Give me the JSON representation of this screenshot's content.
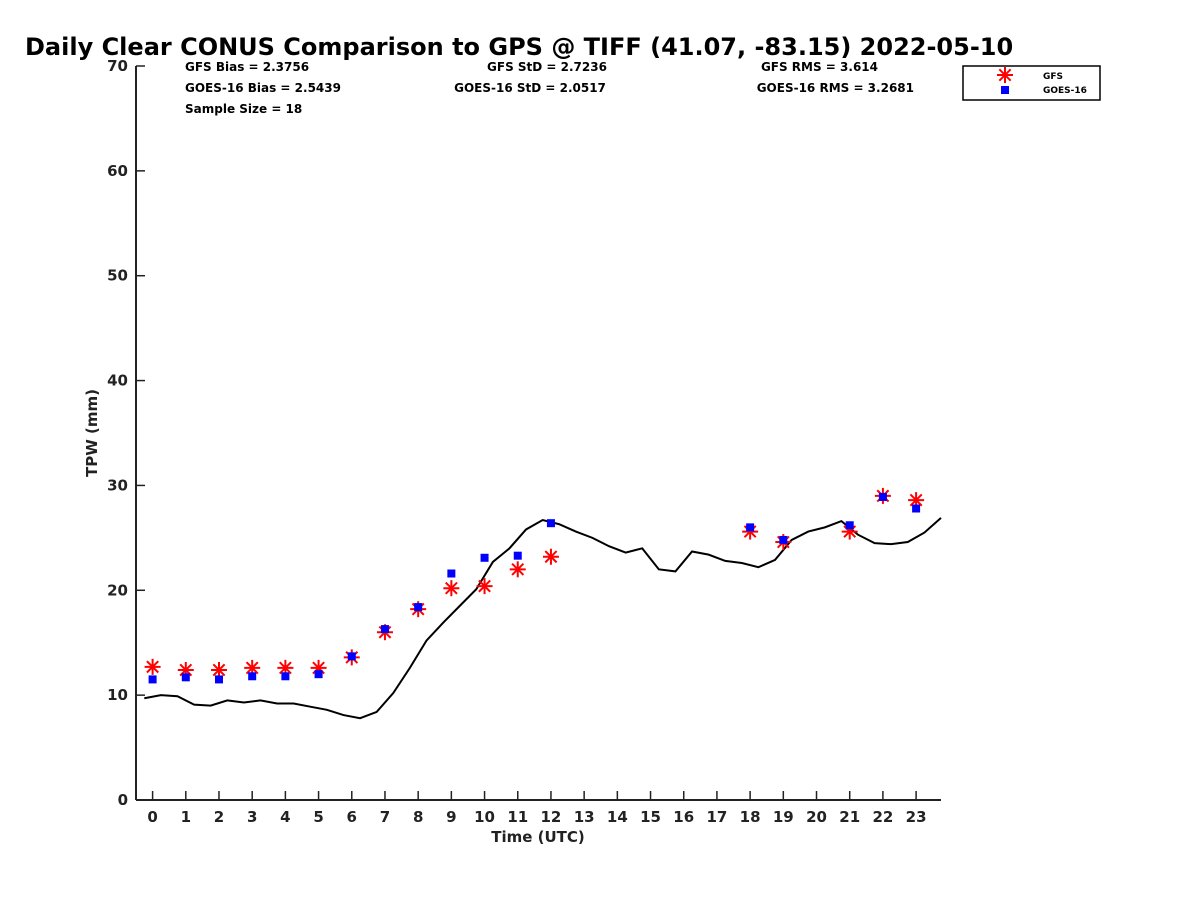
{
  "chart_data": {
    "type": "scatter",
    "title": "Daily Clear CONUS Comparison to GPS @ TIFF (41.07, -83.15) 2022-05-10",
    "xlabel": "Time (UTC)",
    "ylabel": "TPW (mm)",
    "xlim": [
      -0.5,
      23.75
    ],
    "ylim": [
      0,
      70
    ],
    "x_ticks": [
      0,
      1,
      2,
      3,
      4,
      5,
      6,
      7,
      8,
      9,
      10,
      11,
      12,
      13,
      14,
      15,
      16,
      17,
      18,
      19,
      20,
      21,
      22,
      23
    ],
    "y_ticks": [
      0,
      10,
      20,
      30,
      40,
      50,
      60,
      70
    ],
    "grid": false,
    "legend_position": "top-right",
    "stats": {
      "gfs_bias": "GFS Bias = 2.3756",
      "goes_bias": "GOES-16 Bias = 2.5439",
      "sample_size": "Sample Size = 18",
      "gfs_std": "GFS StD = 2.7236",
      "goes_std": "GOES-16 StD = 2.0517",
      "gfs_rms": "GFS RMS = 3.614",
      "goes_rms": "GOES-16 RMS = 3.2681"
    },
    "series": [
      {
        "name": "GFS",
        "marker": "asterisk",
        "color": "#ff0000",
        "x": [
          0,
          1,
          2,
          3,
          4,
          5,
          6,
          7,
          8,
          9,
          10,
          11,
          12,
          18,
          19,
          21,
          22,
          23
        ],
        "y": [
          12.7,
          12.4,
          12.4,
          12.6,
          12.6,
          12.6,
          13.6,
          16.0,
          18.2,
          20.2,
          20.4,
          22.0,
          23.2,
          25.6,
          24.6,
          25.6,
          29.0,
          28.6
        ]
      },
      {
        "name": "GOES-16",
        "marker": "square",
        "color": "#0000ff",
        "x": [
          0,
          1,
          2,
          3,
          4,
          5,
          6,
          7,
          8,
          9,
          10,
          11,
          12,
          18,
          19,
          21,
          22,
          23
        ],
        "y": [
          11.5,
          11.7,
          11.5,
          11.8,
          11.8,
          12.0,
          13.7,
          16.3,
          18.4,
          21.6,
          23.1,
          23.3,
          26.4,
          26.0,
          24.8,
          26.2,
          28.9,
          27.8
        ]
      },
      {
        "marker": "line",
        "color": "#000000",
        "x": [
          -0.25,
          0.25,
          0.75,
          1.25,
          1.75,
          2.25,
          2.75,
          3.25,
          3.75,
          4.25,
          4.75,
          5.25,
          5.75,
          6.25,
          6.75,
          7.25,
          7.75,
          8.25,
          8.75,
          9.25,
          9.75,
          10.25,
          10.75,
          11.25,
          11.75,
          12.25,
          12.75,
          13.25,
          13.75,
          14.25,
          14.75,
          15.25,
          15.75,
          16.25,
          16.75,
          17.25,
          17.75,
          18.25,
          18.75,
          19.25,
          19.75,
          20.25,
          20.75,
          21.25,
          21.75,
          22.25,
          22.75,
          23.25,
          23.75
        ],
        "y": [
          9.7,
          10.0,
          9.9,
          9.1,
          9.0,
          9.5,
          9.3,
          9.5,
          9.2,
          9.2,
          8.9,
          8.6,
          8.1,
          7.8,
          8.4,
          10.2,
          12.6,
          15.2,
          16.9,
          18.5,
          20.1,
          22.7,
          24.0,
          25.8,
          26.7,
          26.3,
          25.6,
          25.0,
          24.2,
          23.6,
          24.0,
          22.0,
          21.8,
          23.7,
          23.4,
          22.8,
          22.6,
          22.2,
          22.9,
          24.8,
          25.6,
          26.0,
          26.6,
          25.3,
          24.5,
          24.4,
          24.6,
          25.5,
          26.9
        ]
      }
    ]
  }
}
